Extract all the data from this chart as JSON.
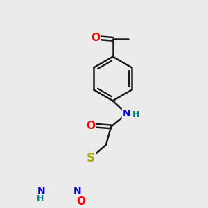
{
  "bg_color": "#ebebeb",
  "bond_color": "#1a1a1a",
  "bond_width": 1.8,
  "atom_colors": {
    "O": "#ff0000",
    "N": "#0000ee",
    "S": "#aaaa00",
    "H": "#008080"
  },
  "font_size": 10,
  "fig_size": [
    3.0,
    3.0
  ],
  "dpi": 100
}
